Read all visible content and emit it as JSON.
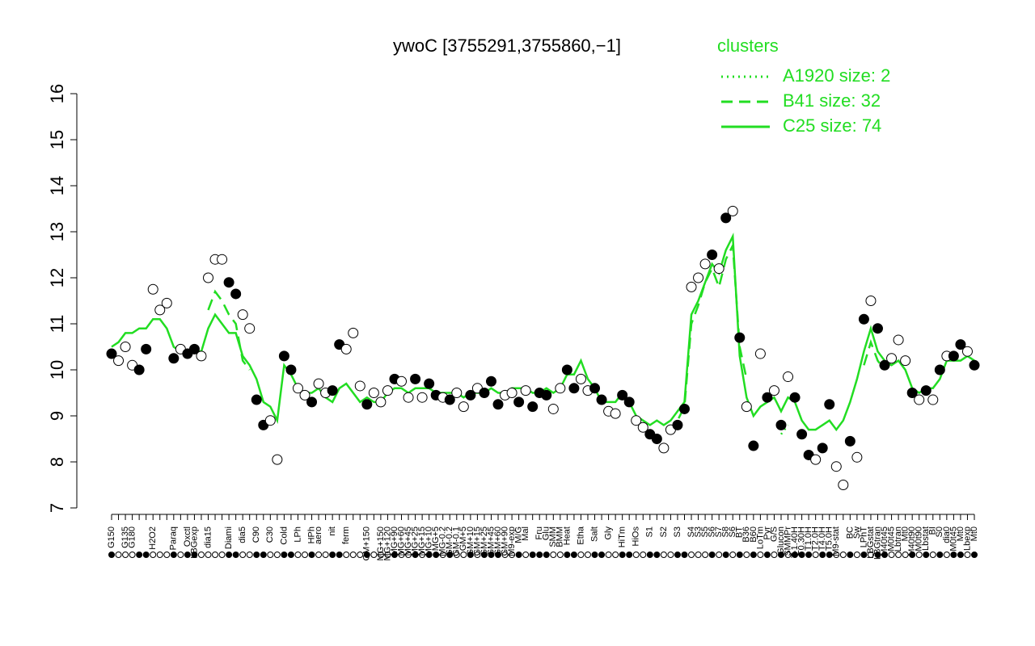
{
  "chart_data": {
    "type": "line",
    "title": "ywoC [3755291,3755860,−1]",
    "legend_title": "clusters",
    "legend": "top-right",
    "ylim": [
      7,
      16
    ],
    "yticks": [
      7,
      8,
      9,
      10,
      11,
      12,
      13,
      14,
      15,
      16
    ],
    "categories": [
      "G150",
      null,
      "G135",
      "G180",
      null,
      null,
      "H2O2",
      null,
      null,
      "Paraq",
      null,
      "Oxctl",
      "LBGexp",
      null,
      "dia15",
      null,
      null,
      "Diami",
      null,
      "dia5",
      null,
      "C90",
      null,
      "C30",
      null,
      "Cold",
      null,
      "LPh",
      null,
      "HPh",
      "aero",
      null,
      "nit",
      null,
      "ferm",
      null,
      null,
      "GM+150",
      null,
      "MG+150",
      "MG+120",
      "MG+90",
      "MG+60",
      "MG+45",
      "MG+25",
      "MG+15",
      "MG+10",
      "MG+5",
      "MG-0.2",
      "GM-0.2",
      "GM-0.1",
      "GM+5",
      "GM+10",
      "GM+15",
      "GM+25",
      "GM+45",
      "GM+60",
      "GM+90",
      "M9-exp",
      "M/G",
      "Mal",
      null,
      "Fru",
      "Glu",
      "SMM",
      "BMM",
      "Heat",
      null,
      "Etha",
      null,
      "Salt",
      null,
      "Gly",
      null,
      "HiTm",
      null,
      "HiOs",
      null,
      "S1",
      null,
      "S2",
      null,
      "S3",
      null,
      "S4",
      "S3",
      "S5",
      "S6",
      "S7",
      "S8",
      "S6",
      "BT",
      "B36",
      "B60",
      "LoTm",
      "Pyr",
      "G/S",
      "Glucon",
      "SMMPr",
      "T-1.40H",
      "T0.30H",
      "T1.0H",
      "T2.0H",
      "T4.0H",
      "T5.0H",
      "M9-stat",
      null,
      "BC",
      "Sw",
      "LPhT",
      "LBGstat",
      "LBGtran",
      "M40t45",
      "M0t45",
      "Lbtran",
      "Mt0",
      "M40t90",
      "M0t90",
      "Lbstat",
      "BI",
      "S0",
      "dia0",
      "M0t45",
      "Mt0",
      "Lbexp",
      "Mt0"
    ],
    "points": {
      "values": [
        10.35,
        10.2,
        10.5,
        10.1,
        10.0,
        10.45,
        11.75,
        11.3,
        11.45,
        10.25,
        10.45,
        10.35,
        10.45,
        10.3,
        12.0,
        12.4,
        12.4,
        11.9,
        11.65,
        11.2,
        10.9,
        9.35,
        8.8,
        8.9,
        8.05,
        10.3,
        10.0,
        9.6,
        9.45,
        9.3,
        9.7,
        9.5,
        9.55,
        10.55,
        10.45,
        10.8,
        9.65,
        9.25,
        9.5,
        9.3,
        9.55,
        9.8,
        9.75,
        9.4,
        9.8,
        9.4,
        9.7,
        9.45,
        9.4,
        9.35,
        9.5,
        9.2,
        9.45,
        9.6,
        9.5,
        9.75,
        9.25,
        9.45,
        9.5,
        9.3,
        9.55,
        9.2,
        9.5,
        9.45,
        9.15,
        9.6,
        10.0,
        9.6,
        9.8,
        9.55,
        9.6,
        9.35,
        9.1,
        9.05,
        9.45,
        9.3,
        8.9,
        8.75,
        8.6,
        8.5,
        8.3,
        8.7,
        8.8,
        9.15,
        11.8,
        12.0,
        12.3,
        12.5,
        12.2,
        13.3,
        13.45,
        10.7,
        9.2,
        8.35,
        10.35,
        9.4,
        9.55,
        8.8,
        9.85,
        9.4,
        8.6,
        8.15,
        8.05,
        8.3,
        9.25,
        7.9,
        7.5,
        8.45,
        8.1,
        11.1,
        11.5,
        10.9,
        10.1,
        10.25,
        10.65,
        10.2,
        9.5,
        9.35,
        9.55,
        9.35,
        10.0,
        10.3,
        10.3,
        10.55,
        10.4,
        10.1
      ],
      "fills": [
        "black",
        "white",
        "white",
        "white",
        "black",
        "black",
        "white",
        "white",
        "white",
        "black",
        "white",
        "black",
        "black",
        "white",
        "white",
        "white",
        "white",
        "black",
        "black",
        "white",
        "white",
        "black",
        "black",
        "white",
        "white",
        "black",
        "black",
        "white",
        "white",
        "black",
        "white",
        "white",
        "black",
        "black",
        "white",
        "white",
        "white",
        "black",
        "white",
        "white",
        "white",
        "black",
        "white",
        "white",
        "black",
        "white",
        "black",
        "black",
        "white",
        "black",
        "white",
        "white",
        "black",
        "white",
        "black",
        "black",
        "black",
        "white",
        "white",
        "black",
        "white",
        "black",
        "black",
        "black",
        "white",
        "white",
        "black",
        "black",
        "white",
        "white",
        "black",
        "black",
        "white",
        "white",
        "black",
        "black",
        "white",
        "white",
        "black",
        "black",
        "white",
        "white",
        "black",
        "black",
        "white",
        "white",
        "white",
        "black",
        "white",
        "black",
        "white",
        "black",
        "white",
        "black",
        "white",
        "black",
        "white",
        "black",
        "white",
        "black",
        "black",
        "black",
        "white",
        "black",
        "black",
        "white",
        "white",
        "black",
        "white",
        "black",
        "white",
        "black",
        "black",
        "white",
        "white",
        "white",
        "black",
        "white",
        "black",
        "white",
        "black",
        "white",
        "black",
        "black",
        "white",
        "black"
      ]
    },
    "series": [
      {
        "name": "A1920 size: 2",
        "color": "#22dd22",
        "style": "dotted",
        "values": [
          null,
          null,
          null,
          null,
          null,
          null,
          null,
          null,
          null,
          null,
          null,
          null,
          null,
          null,
          null,
          null,
          null,
          null,
          null,
          null,
          null,
          null,
          null,
          null,
          null,
          null,
          null,
          null,
          null,
          null,
          null,
          null,
          null,
          null,
          null,
          null,
          null,
          null,
          null,
          null,
          null,
          null,
          null,
          null,
          null,
          null,
          null,
          null,
          null,
          null,
          null,
          null,
          null,
          null,
          null,
          null,
          null,
          null,
          null,
          null,
          null,
          null,
          null,
          null,
          null,
          null,
          null,
          null,
          null,
          null,
          null,
          null,
          null,
          null,
          null,
          null,
          null,
          null,
          null,
          null,
          null,
          null,
          null,
          null,
          null,
          null,
          null,
          null,
          null,
          null,
          null,
          null,
          null,
          null,
          null,
          null,
          null,
          8.6,
          8.8,
          null,
          null,
          null,
          null,
          null,
          null,
          null,
          null,
          null,
          null,
          null,
          null,
          null,
          null,
          null,
          null,
          null,
          null,
          null,
          null,
          null,
          null,
          null,
          null,
          null,
          null,
          null
        ]
      },
      {
        "name": "B41 size: 32",
        "color": "#22dd22",
        "style": "dashed",
        "values": [
          null,
          null,
          null,
          null,
          null,
          null,
          null,
          null,
          null,
          null,
          null,
          null,
          null,
          null,
          11.3,
          11.7,
          11.5,
          11.2,
          11.0,
          10.2,
          10.0,
          null,
          null,
          null,
          null,
          null,
          null,
          null,
          null,
          null,
          null,
          null,
          null,
          null,
          null,
          null,
          null,
          null,
          null,
          null,
          null,
          null,
          null,
          null,
          null,
          null,
          null,
          null,
          null,
          null,
          null,
          null,
          null,
          null,
          null,
          null,
          null,
          null,
          null,
          null,
          null,
          null,
          null,
          null,
          null,
          null,
          null,
          null,
          null,
          null,
          null,
          null,
          null,
          null,
          null,
          null,
          null,
          null,
          null,
          null,
          null,
          8.6,
          8.9,
          9.2,
          11.0,
          11.4,
          11.9,
          12.2,
          11.8,
          12.4,
          12.7,
          10.5,
          9.8,
          null,
          null,
          null,
          null,
          null,
          null,
          null,
          null,
          null,
          null,
          null,
          null,
          null,
          null,
          null,
          null,
          10.1,
          10.6,
          10.2,
          10.0,
          null,
          null,
          null,
          null,
          null,
          null,
          null,
          null,
          null,
          null,
          null,
          null,
          null
        ]
      },
      {
        "name": "C25 size: 74",
        "color": "#22dd22",
        "style": "solid",
        "values": [
          10.5,
          10.6,
          10.8,
          10.8,
          10.9,
          10.9,
          11.1,
          11.1,
          10.9,
          10.5,
          10.4,
          10.4,
          10.4,
          10.4,
          10.9,
          11.2,
          11.0,
          10.8,
          10.8,
          10.3,
          10.1,
          9.8,
          9.3,
          9.2,
          8.9,
          10.1,
          9.9,
          9.6,
          9.5,
          9.5,
          9.6,
          9.4,
          9.3,
          9.6,
          9.7,
          9.5,
          9.3,
          9.4,
          9.3,
          9.3,
          9.5,
          9.6,
          9.6,
          9.5,
          9.6,
          9.6,
          9.6,
          9.5,
          9.5,
          9.5,
          9.5,
          9.4,
          9.5,
          9.5,
          9.5,
          9.6,
          9.5,
          9.5,
          9.6,
          9.6,
          9.6,
          9.5,
          9.5,
          9.6,
          9.5,
          9.6,
          9.9,
          9.9,
          10.2,
          9.8,
          9.6,
          9.3,
          9.3,
          9.3,
          9.5,
          9.3,
          9.0,
          8.9,
          8.8,
          8.9,
          8.8,
          8.9,
          9.1,
          9.3,
          11.2,
          11.5,
          11.9,
          12.3,
          12.1,
          12.6,
          12.9,
          10.3,
          9.4,
          9.0,
          9.2,
          9.3,
          9.4,
          9.1,
          9.4,
          9.3,
          8.9,
          8.7,
          8.7,
          8.8,
          8.9,
          8.7,
          8.9,
          9.3,
          9.8,
          10.4,
          10.9,
          10.4,
          10.2,
          10.1,
          10.2,
          10.0,
          9.6,
          9.5,
          9.6,
          9.6,
          9.8,
          10.2,
          10.2,
          10.2,
          10.3,
          10.2
        ]
      }
    ]
  }
}
